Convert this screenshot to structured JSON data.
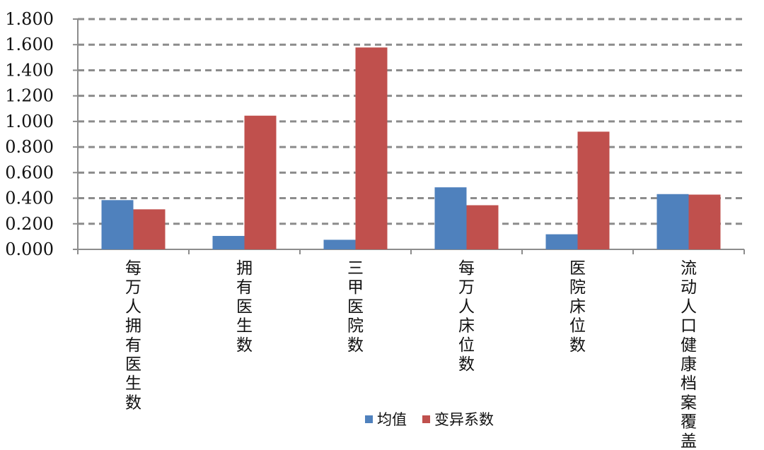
{
  "chart_data": {
    "type": "bar",
    "categories": [
      "每万人拥有医生数",
      "拥有医生数",
      "三甲医院数",
      "每万人床位数",
      "医院床位数",
      "流动人口健康档案覆盖率"
    ],
    "series": [
      {
        "name": "均值",
        "values": [
          0.385,
          0.105,
          0.075,
          0.485,
          0.118,
          0.432
        ],
        "color": "#4f81bd"
      },
      {
        "name": "变异系数",
        "values": [
          0.313,
          1.045,
          1.578,
          0.345,
          0.92,
          0.428
        ],
        "color": "#c0504d"
      }
    ],
    "y_ticks": [
      "0.000",
      "0.200",
      "0.400",
      "0.600",
      "0.800",
      "1.000",
      "1.200",
      "1.400",
      "1.600",
      "1.800"
    ],
    "ylim": [
      0,
      1.8
    ],
    "grid": "dashed horizontal",
    "legend_position": "bottom"
  }
}
